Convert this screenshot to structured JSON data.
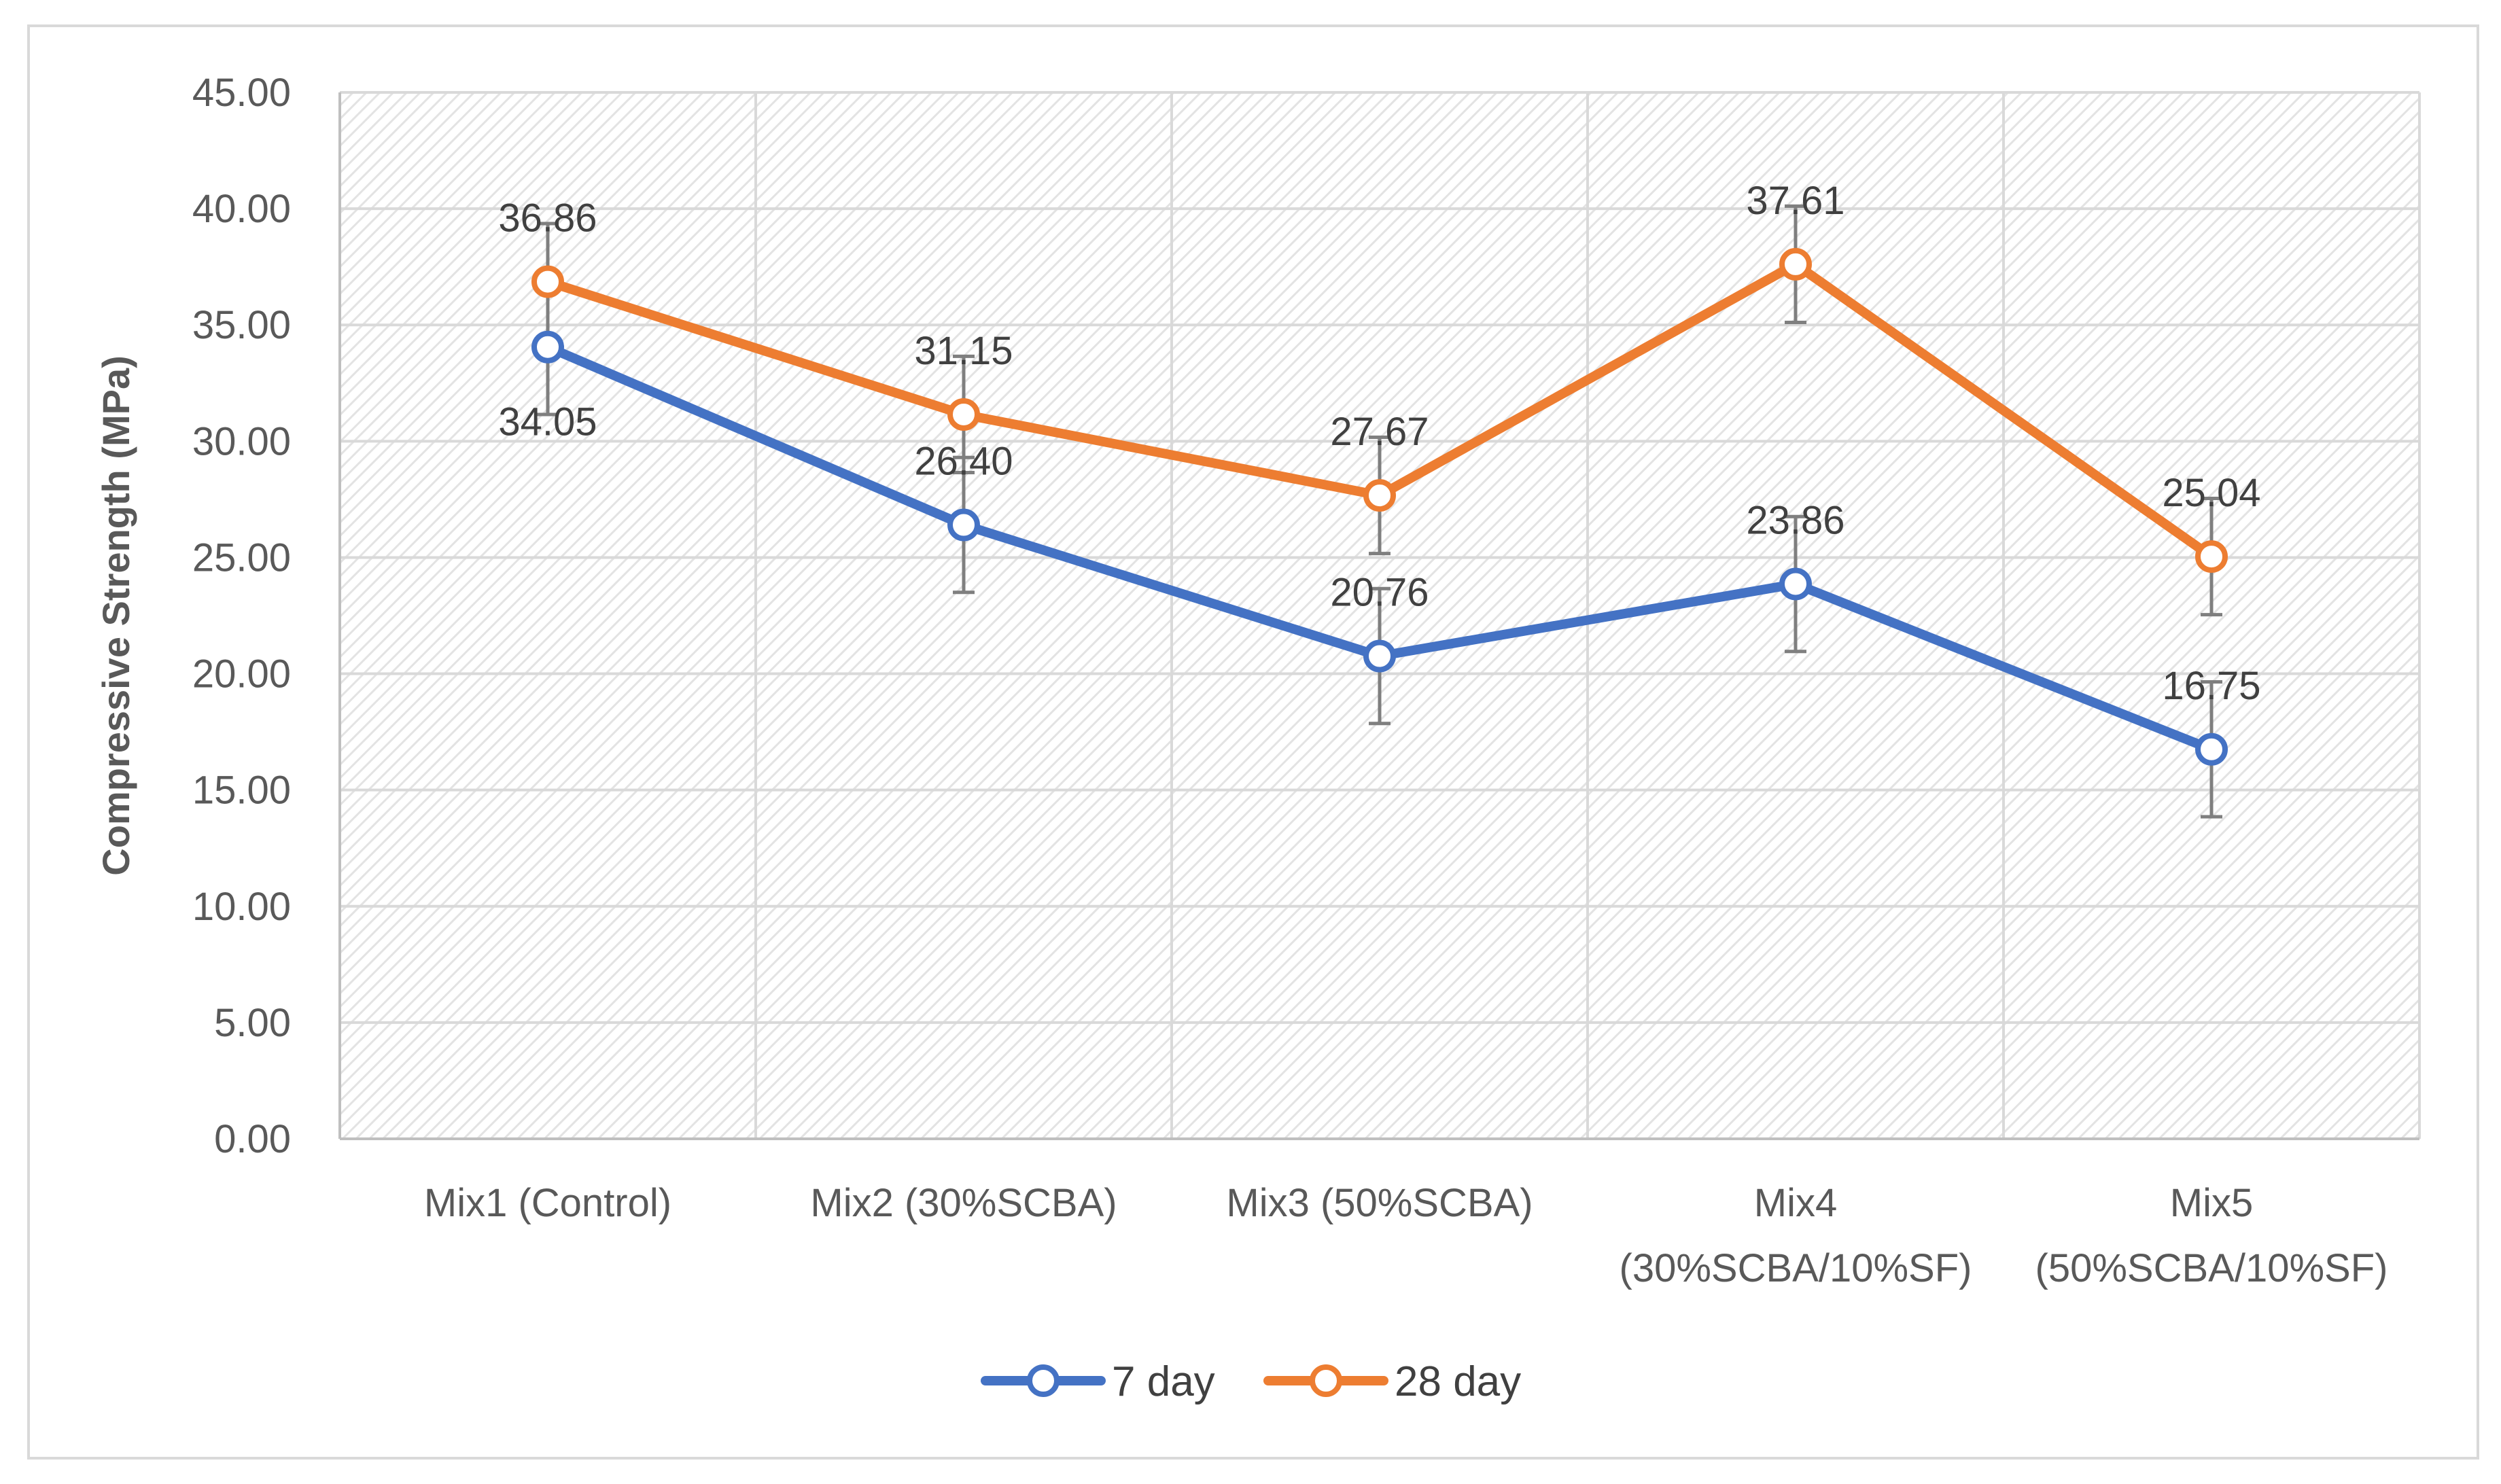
{
  "chart_data": {
    "type": "line",
    "title": "",
    "xlabel": "",
    "ylabel": "Compressive Strength (MPa)",
    "ylim": [
      0,
      45
    ],
    "ytick_step": 5,
    "ytick_labels": [
      "0.00",
      "5.00",
      "10.00",
      "15.00",
      "20.00",
      "25.00",
      "30.00",
      "35.00",
      "40.00",
      "45.00"
    ],
    "grid": true,
    "legend_position": "bottom",
    "categories": [
      [
        "Mix1 (Control)"
      ],
      [
        "Mix2 (30%SCBA)"
      ],
      [
        "Mix3 (50%SCBA)"
      ],
      [
        "Mix4",
        "(30%SCBA/10%SF)"
      ],
      [
        "Mix5",
        "(50%SCBA/10%SF)"
      ]
    ],
    "series": [
      {
        "name": "7 day",
        "color": "#4472c4",
        "values": [
          34.05,
          26.4,
          20.76,
          23.86,
          16.75
        ],
        "labels": [
          "34.05",
          "26.40",
          "20.76",
          "23.86",
          "16.75"
        ],
        "error": [
          2.9,
          2.9,
          2.9,
          2.9,
          2.9
        ]
      },
      {
        "name": "28 day",
        "color": "#ed7d31",
        "values": [
          36.86,
          31.15,
          27.67,
          37.61,
          25.04
        ],
        "labels": [
          "36.86",
          "31.15",
          "27.67",
          "37.61",
          "25.04"
        ],
        "error": [
          2.5,
          2.5,
          2.5,
          2.5,
          2.5
        ]
      }
    ],
    "colors": {
      "grid": "#d9d9d9",
      "axis": "#bfbfbf",
      "error_bar": "#7f7f7f",
      "plot_hatch": "#e6e6e6"
    }
  }
}
